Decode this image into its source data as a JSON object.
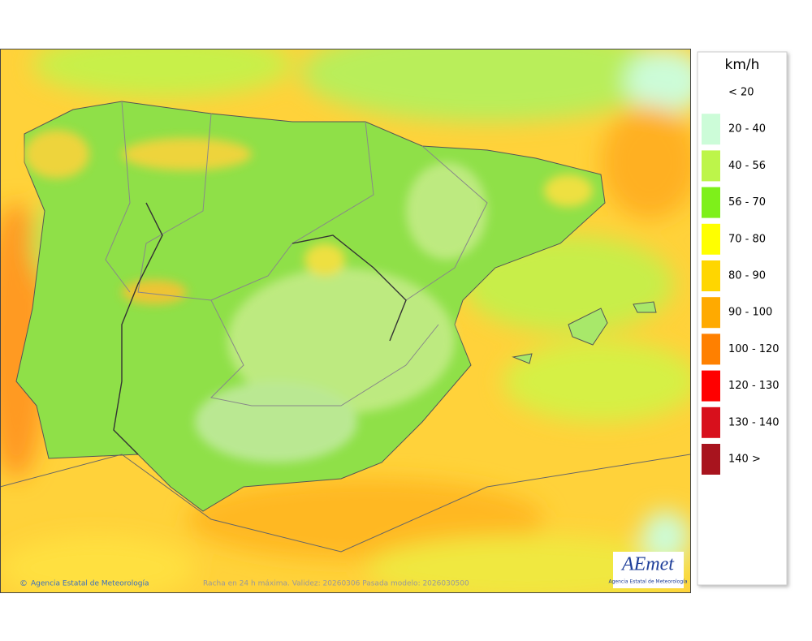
{
  "map": {
    "credit": "Agencia Estatal de Meteorología",
    "caption": "Racha en 24 h máxima. Validez: 20260306 Pasada modelo: 2026030500",
    "logo": {
      "name": "AEmet",
      "subtitle": "Agencia Estatal de Meteorología"
    }
  },
  "legend": {
    "unit": "km/h",
    "items": [
      {
        "label": "< 20"
      },
      {
        "label": "20 - 40",
        "color": "#ccfcd8"
      },
      {
        "label": "40 - 56",
        "color": "#bdf54a"
      },
      {
        "label": "56 - 70",
        "color": "#7ef01a"
      },
      {
        "label": "70 - 80",
        "color": "#ffff00"
      },
      {
        "label": "80 - 90",
        "color": "#ffd600"
      },
      {
        "label": "90 - 100",
        "color": "#ffaa00"
      },
      {
        "label": "100 - 120",
        "color": "#ff8000"
      },
      {
        "label": "120 - 130",
        "color": "#ff0000"
      },
      {
        "label": "130 - 140",
        "color": "#d8101c"
      },
      {
        "label": "140 >",
        "color": "#a8141e"
      }
    ]
  }
}
